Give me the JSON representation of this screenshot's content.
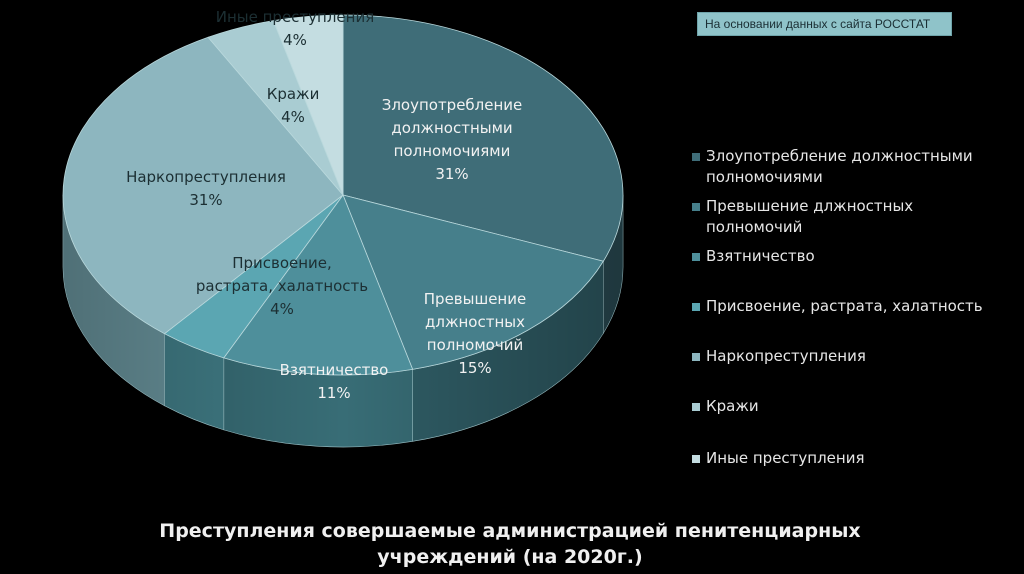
{
  "source_note": "На основании данных с сайта РОССТАТ",
  "title": "Преступления совершаемые администрацией пенитенциарных учреждений (на 2020г.)",
  "chart_data": {
    "type": "pie",
    "title": "Преступления совершаемые администрацией пенитенциарных учреждений (на 2020г.)",
    "unit": "%",
    "legend_position": "right",
    "slices": [
      {
        "name": "Злоупотребление должностными полномочиями",
        "label_lines": [
          "Злоупотребление",
          "должностными",
          "полномочиями"
        ],
        "value": 31,
        "value_label": "31%",
        "color": "#3f6d78",
        "side_color": "#2c4f58"
      },
      {
        "name": "Превышение длжностных полномочий",
        "label_lines": [
          "Превышение",
          "длжностных",
          "полномочий"
        ],
        "value": 15,
        "value_label": "15%",
        "color": "#467f8b",
        "side_color": "#305e67"
      },
      {
        "name": "Взятничество",
        "label_lines": [
          "Взятничество"
        ],
        "value": 11,
        "value_label": "11%",
        "color": "#4e8f9b",
        "side_color": "#386d76"
      },
      {
        "name": "Присвоение, растрата, халатность",
        "label_lines": [
          "Присвоение,",
          "растрата, халатность"
        ],
        "value": 4,
        "value_label": "4%",
        "color": "#5ba6b2",
        "side_color": "#417d87"
      },
      {
        "name": "Наркопреступления",
        "label_lines": [
          "Наркопреступления"
        ],
        "value": 31,
        "value_label": "31%",
        "color": "#8db6bf",
        "side_color": "#6a959e"
      },
      {
        "name": "Кражи",
        "label_lines": [
          "Кражи"
        ],
        "value": 4,
        "value_label": "4%",
        "color": "#a9ccd2",
        "side_color": "#86abb1"
      },
      {
        "name": "Иные преступления",
        "label_lines": [
          "Иные преступления"
        ],
        "value": 4,
        "value_label": "4%",
        "color": "#c4dde1",
        "side_color": "#a2bfc4"
      }
    ],
    "legend": [
      {
        "lines": [
          "Злоупотребление должностными",
          "полномочиями"
        ]
      },
      {
        "lines": [
          "Превышение длжностных",
          "полномочий"
        ]
      },
      {
        "lines": [
          "Взятничество"
        ]
      },
      {
        "lines": [
          "Присвоение, растрата, халатность"
        ]
      },
      {
        "lines": [
          "Наркопреступления"
        ]
      },
      {
        "lines": [
          "Кражи"
        ]
      },
      {
        "lines": [
          "Иные преступления"
        ]
      }
    ]
  }
}
